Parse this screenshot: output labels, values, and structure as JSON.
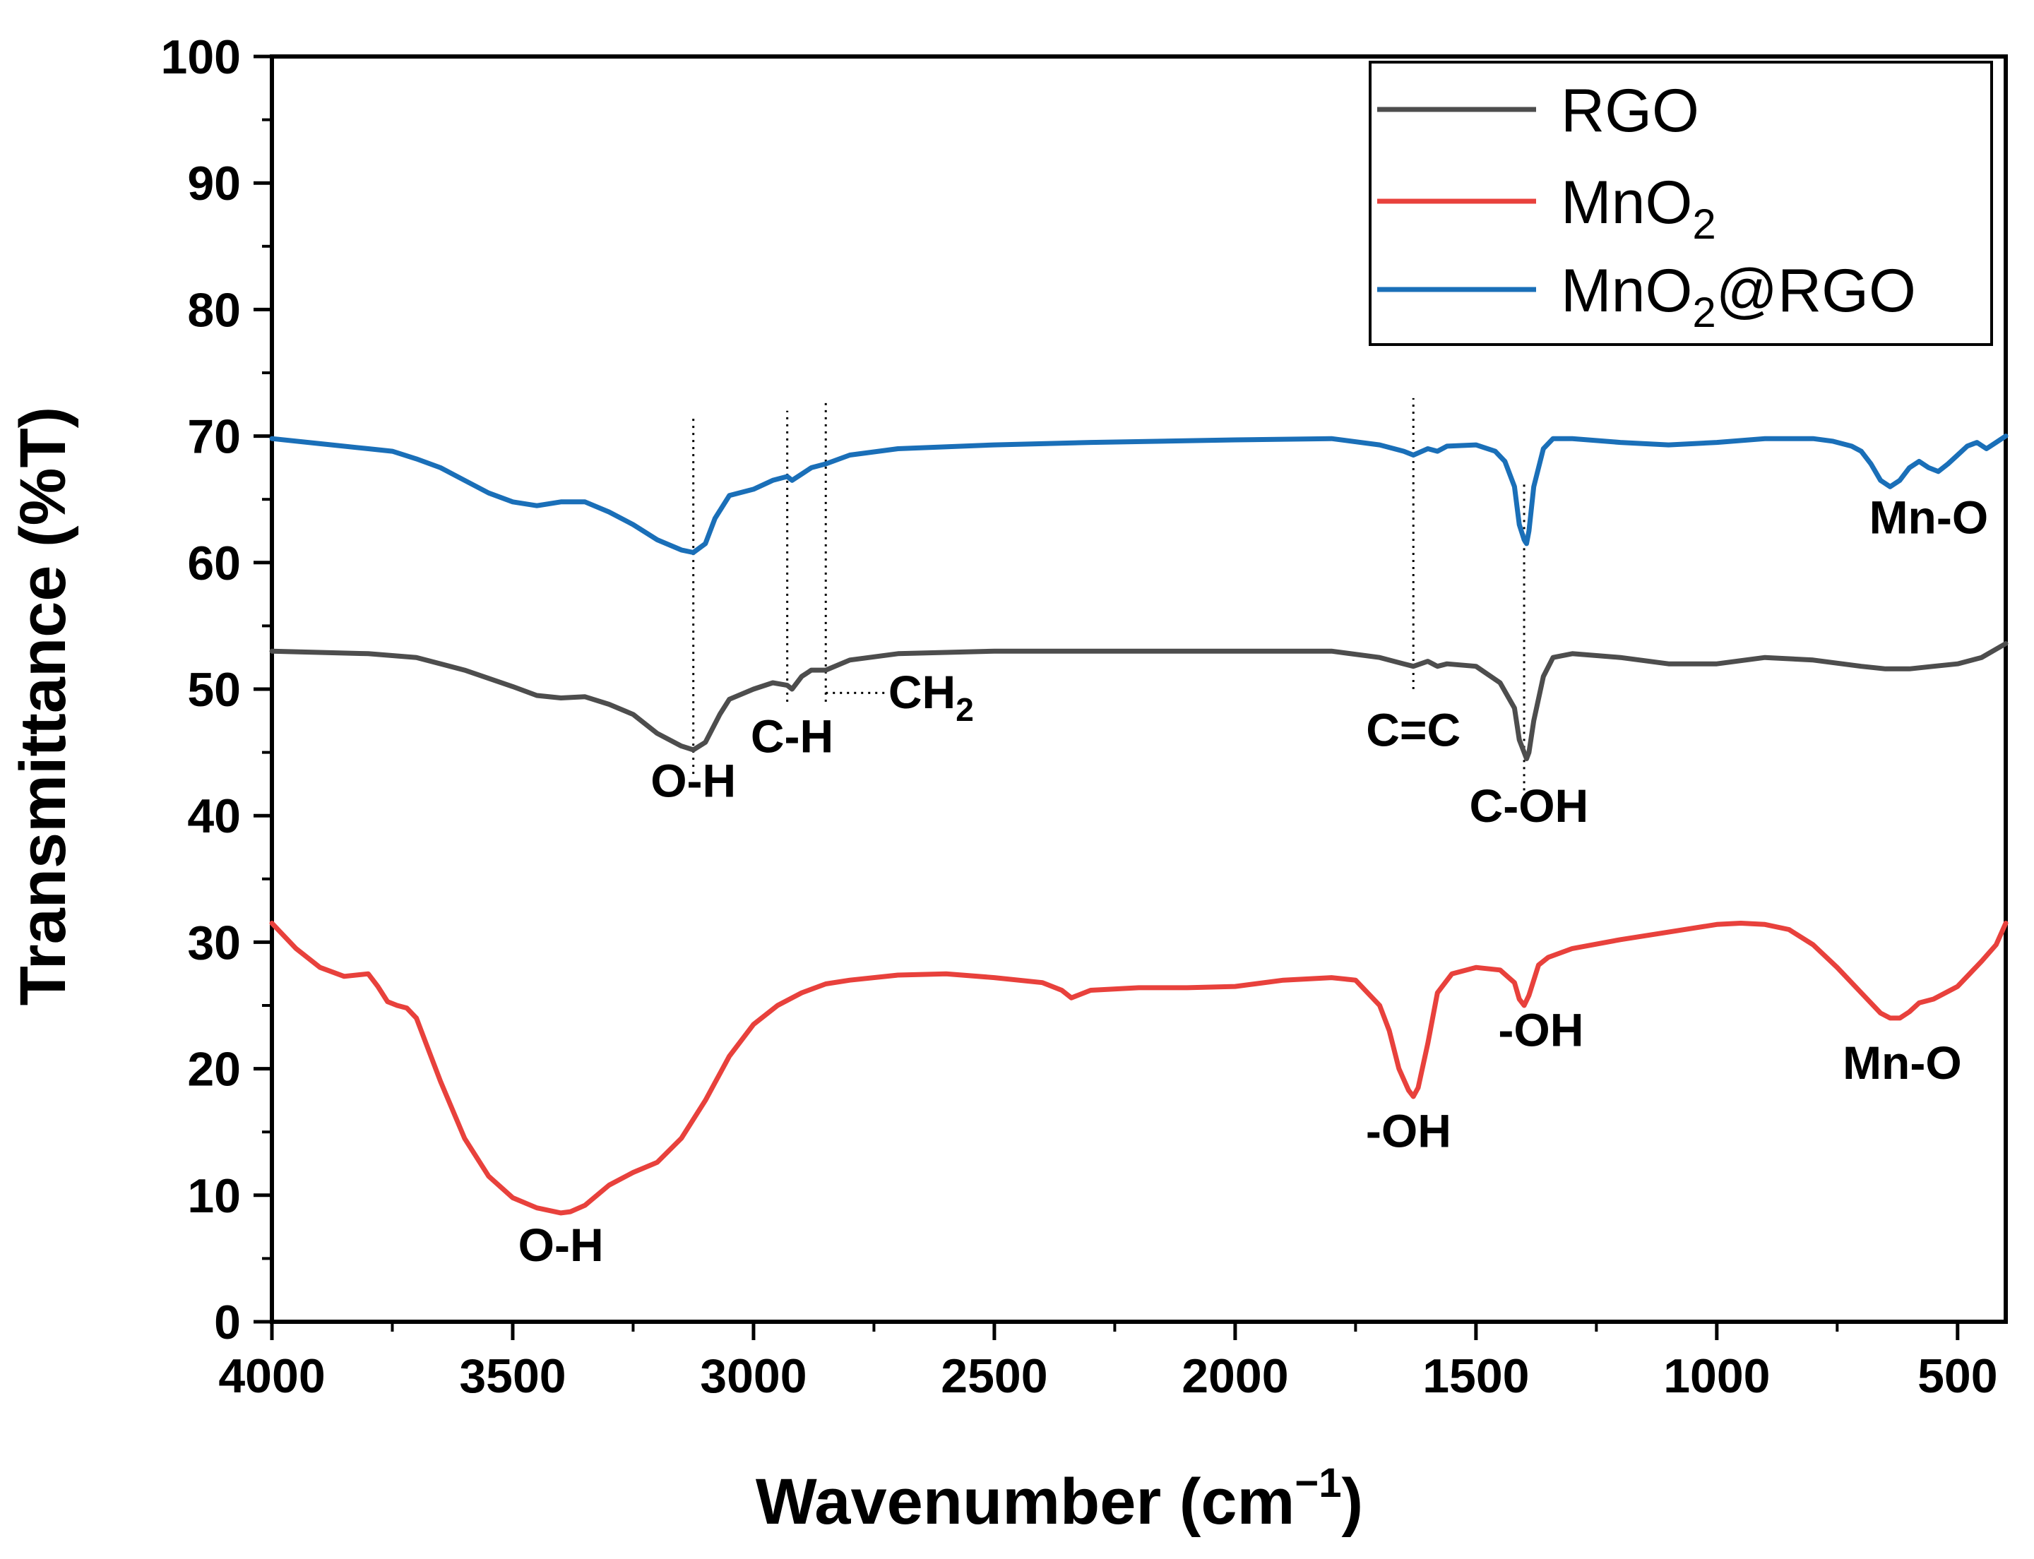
{
  "chart_data": {
    "type": "line",
    "title": "",
    "xlabel": "Wavenumber (cm",
    "xlabel_sup": "−1",
    "xlabel_close": ")",
    "ylabel": "Transmittance (%T)",
    "xlim": [
      4000,
      400
    ],
    "ylim": [
      0,
      100
    ],
    "xticks": [
      4000,
      3500,
      3000,
      2500,
      2000,
      1500,
      1000,
      500
    ],
    "yticks": [
      0,
      10,
      20,
      30,
      40,
      50,
      60,
      70,
      80,
      90,
      100
    ],
    "grid": false,
    "legend_position": "top-right",
    "series": [
      {
        "name": "RGO",
        "name_sub": "",
        "name_suffix": "",
        "color": "#4d4d4d",
        "x": [
          4000,
          3800,
          3700,
          3600,
          3500,
          3450,
          3400,
          3350,
          3300,
          3250,
          3200,
          3150,
          3125,
          3100,
          3070,
          3050,
          3000,
          2960,
          2930,
          2920,
          2900,
          2880,
          2850,
          2800,
          2700,
          2500,
          2300,
          2000,
          1800,
          1700,
          1650,
          1630,
          1600,
          1580,
          1560,
          1500,
          1450,
          1420,
          1410,
          1400,
          1395,
          1390,
          1380,
          1360,
          1340,
          1300,
          1200,
          1100,
          1000,
          900,
          800,
          700,
          650,
          600,
          550,
          500,
          450,
          400
        ],
        "y": [
          53,
          52.8,
          52.5,
          51.5,
          50.2,
          49.5,
          49.3,
          49.4,
          48.8,
          48,
          46.5,
          45.5,
          45.2,
          45.8,
          48,
          49.2,
          50,
          50.5,
          50.3,
          50,
          51,
          51.5,
          51.5,
          52.3,
          52.8,
          53,
          53,
          53,
          53,
          52.5,
          52,
          51.8,
          52.2,
          51.8,
          52,
          51.8,
          50.5,
          48.5,
          46,
          45,
          44.5,
          45,
          47.5,
          51,
          52.5,
          52.8,
          52.5,
          52,
          52,
          52.5,
          52.3,
          51.8,
          51.6,
          51.6,
          51.8,
          52,
          52.5,
          53.6
        ]
      },
      {
        "name": "MnO",
        "name_sub": "2",
        "name_suffix": "",
        "color": "#e8413c",
        "x": [
          4000,
          3950,
          3900,
          3850,
          3800,
          3780,
          3760,
          3740,
          3720,
          3700,
          3680,
          3650,
          3600,
          3550,
          3500,
          3450,
          3400,
          3380,
          3350,
          3300,
          3250,
          3200,
          3150,
          3100,
          3050,
          3000,
          2950,
          2900,
          2850,
          2800,
          2700,
          2600,
          2500,
          2400,
          2360,
          2340,
          2300,
          2200,
          2100,
          2000,
          1900,
          1800,
          1750,
          1700,
          1680,
          1660,
          1640,
          1630,
          1620,
          1600,
          1580,
          1550,
          1500,
          1450,
          1420,
          1410,
          1400,
          1390,
          1370,
          1350,
          1300,
          1200,
          1100,
          1000,
          950,
          900,
          850,
          800,
          750,
          700,
          660,
          640,
          620,
          600,
          580,
          550,
          500,
          450,
          420,
          400
        ],
        "y": [
          31.5,
          29.5,
          28,
          27.3,
          27.5,
          26.5,
          25.3,
          25,
          24.8,
          24,
          22,
          19,
          14.5,
          11.5,
          9.8,
          9,
          8.6,
          8.7,
          9.2,
          10.8,
          11.8,
          12.6,
          14.5,
          17.5,
          21,
          23.5,
          25,
          26,
          26.7,
          27,
          27.4,
          27.5,
          27.2,
          26.8,
          26.2,
          25.6,
          26.2,
          26.4,
          26.4,
          26.5,
          27,
          27.2,
          27,
          25,
          23,
          20,
          18.3,
          17.8,
          18.5,
          22,
          26,
          27.5,
          28,
          27.8,
          26.8,
          25.5,
          25,
          25.8,
          28.2,
          28.8,
          29.5,
          30.2,
          30.8,
          31.4,
          31.5,
          31.4,
          31,
          29.8,
          28,
          26,
          24.4,
          24,
          24,
          24.5,
          25.2,
          25.5,
          26.5,
          28.5,
          29.8,
          31.5
        ]
      },
      {
        "name": "MnO",
        "name_sub": "2",
        "name_suffix": "@RGO",
        "color": "#1a6fb8",
        "x": [
          4000,
          3900,
          3800,
          3750,
          3700,
          3650,
          3600,
          3550,
          3500,
          3450,
          3400,
          3350,
          3300,
          3250,
          3200,
          3150,
          3125,
          3100,
          3080,
          3050,
          3000,
          2960,
          2930,
          2920,
          2900,
          2880,
          2850,
          2800,
          2700,
          2500,
          2300,
          2000,
          1800,
          1700,
          1650,
          1630,
          1600,
          1580,
          1560,
          1500,
          1460,
          1440,
          1420,
          1410,
          1400,
          1395,
          1390,
          1380,
          1360,
          1340,
          1300,
          1200,
          1100,
          1000,
          900,
          800,
          760,
          720,
          700,
          680,
          660,
          640,
          620,
          600,
          580,
          560,
          540,
          520,
          500,
          480,
          460,
          440,
          420,
          400
        ],
        "y": [
          69.8,
          69.4,
          69,
          68.8,
          68.2,
          67.5,
          66.5,
          65.5,
          64.8,
          64.5,
          64.8,
          64.8,
          64,
          63,
          61.8,
          61,
          60.8,
          61.5,
          63.5,
          65.3,
          65.8,
          66.5,
          66.8,
          66.5,
          67,
          67.5,
          67.8,
          68.5,
          69,
          69.3,
          69.5,
          69.7,
          69.8,
          69.3,
          68.8,
          68.5,
          69,
          68.8,
          69.2,
          69.3,
          68.8,
          68,
          66,
          63,
          61.8,
          61.5,
          62.5,
          66,
          69,
          69.8,
          69.8,
          69.5,
          69.3,
          69.5,
          69.8,
          69.8,
          69.6,
          69.2,
          68.8,
          67.8,
          66.5,
          66,
          66.5,
          67.5,
          68,
          67.5,
          67.2,
          67.8,
          68.5,
          69.2,
          69.5,
          69,
          69.5,
          70
        ]
      }
    ],
    "annotations": [
      {
        "text": "O-H",
        "sub": "",
        "x": 3125,
        "y": 41.5,
        "anchor": "middle"
      },
      {
        "text": "C-H",
        "sub": "",
        "x": 2920,
        "y": 45.0,
        "anchor": "middle"
      },
      {
        "text": "CH",
        "sub": "2",
        "x": 2720,
        "y": 48.5,
        "anchor": "start"
      },
      {
        "text": "C=C",
        "sub": "",
        "x": 1630,
        "y": 45.5,
        "anchor": "middle"
      },
      {
        "text": "C-OH",
        "sub": "",
        "x": 1390,
        "y": 39.5,
        "anchor": "middle"
      },
      {
        "text": "Mn-O",
        "sub": "",
        "x": 560,
        "y": 62.3,
        "anchor": "middle"
      },
      {
        "text": "O-H",
        "sub": "",
        "x": 3400,
        "y": 4.8,
        "anchor": "middle"
      },
      {
        "text": "-OH",
        "sub": "",
        "x": 1640,
        "y": 13.8,
        "anchor": "middle"
      },
      {
        "text": "-OH",
        "sub": "",
        "x": 1365,
        "y": 21.8,
        "anchor": "middle"
      },
      {
        "text": "Mn-O",
        "sub": "",
        "x": 615,
        "y": 19.2,
        "anchor": "middle"
      }
    ],
    "reference_lines": [
      {
        "x": 3125,
        "y_from": 43.3,
        "y_to": 71.5
      },
      {
        "x": 2930,
        "y_from": 49.0,
        "y_to": 72.0
      },
      {
        "x": 2850,
        "y_from": 49.0,
        "y_to": 73.0
      },
      {
        "x": 1630,
        "y_from": 50.0,
        "y_to": 73.0
      },
      {
        "x": 1400,
        "y_from": 42.0,
        "y_to": 66.5
      }
    ],
    "connector": {
      "x_from": 2850,
      "x_to": 2720,
      "y": 49.7
    }
  }
}
